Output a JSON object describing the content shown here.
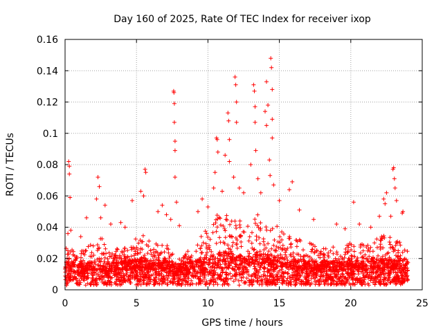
{
  "chart_data": {
    "type": "scatter",
    "title": "Day 160 of 2025, Rate Of TEC Index for receiver ixop",
    "xlabel": "GPS time / hours",
    "ylabel": "ROTI / TECUs",
    "xlim": [
      0,
      25
    ],
    "ylim": [
      0,
      0.16
    ],
    "xticks": [
      0,
      5,
      10,
      15,
      20,
      25
    ],
    "yticks": [
      0,
      0.02,
      0.04,
      0.06,
      0.08,
      0.1,
      0.12,
      0.14,
      0.16
    ],
    "xtick_labels": [
      "0",
      "5",
      "10",
      "15",
      "20",
      "25"
    ],
    "ytick_labels": [
      "0",
      "0.02",
      "0.04",
      "0.06",
      "0.08",
      "0.1",
      "0.12",
      "0.14",
      "0.16"
    ],
    "grid": true,
    "marker": "+",
    "color": "#ff0000",
    "series": [
      {
        "name": "ROTI",
        "points": [
          [
            0.2,
            0.036
          ],
          [
            0.25,
            0.082
          ],
          [
            0.3,
            0.079
          ],
          [
            0.3,
            0.074
          ],
          [
            0.35,
            0.059
          ],
          [
            0.4,
            0.038
          ],
          [
            1.1,
            0.034
          ],
          [
            1.5,
            0.046
          ],
          [
            2.2,
            0.058
          ],
          [
            2.3,
            0.072
          ],
          [
            2.4,
            0.066
          ],
          [
            2.5,
            0.046
          ],
          [
            2.8,
            0.054
          ],
          [
            3.2,
            0.042
          ],
          [
            3.9,
            0.043
          ],
          [
            4.2,
            0.04
          ],
          [
            4.7,
            0.057
          ],
          [
            5.3,
            0.063
          ],
          [
            5.5,
            0.06
          ],
          [
            5.6,
            0.077
          ],
          [
            5.65,
            0.075
          ],
          [
            6.5,
            0.05
          ],
          [
            6.8,
            0.054
          ],
          [
            7.1,
            0.048
          ],
          [
            7.4,
            0.045
          ],
          [
            7.6,
            0.127
          ],
          [
            7.62,
            0.126
          ],
          [
            7.65,
            0.119
          ],
          [
            7.65,
            0.107
          ],
          [
            7.7,
            0.095
          ],
          [
            7.7,
            0.089
          ],
          [
            7.7,
            0.072
          ],
          [
            7.8,
            0.056
          ],
          [
            8.0,
            0.041
          ],
          [
            9.3,
            0.05
          ],
          [
            9.6,
            0.058
          ],
          [
            10.0,
            0.053
          ],
          [
            10.4,
            0.065
          ],
          [
            10.5,
            0.075
          ],
          [
            10.6,
            0.097
          ],
          [
            10.65,
            0.096
          ],
          [
            10.7,
            0.088
          ],
          [
            11.0,
            0.063
          ],
          [
            11.2,
            0.086
          ],
          [
            11.4,
            0.113
          ],
          [
            11.45,
            0.108
          ],
          [
            11.5,
            0.096
          ],
          [
            11.5,
            0.082
          ],
          [
            11.8,
            0.072
          ],
          [
            11.9,
            0.136
          ],
          [
            11.95,
            0.131
          ],
          [
            12.0,
            0.12
          ],
          [
            12.0,
            0.107
          ],
          [
            12.2,
            0.065
          ],
          [
            12.5,
            0.062
          ],
          [
            13.0,
            0.08
          ],
          [
            13.2,
            0.131
          ],
          [
            13.25,
            0.127
          ],
          [
            13.3,
            0.117
          ],
          [
            13.3,
            0.107
          ],
          [
            13.35,
            0.089
          ],
          [
            13.5,
            0.071
          ],
          [
            13.7,
            0.062
          ],
          [
            14.0,
            0.114
          ],
          [
            14.1,
            0.105
          ],
          [
            14.1,
            0.133
          ],
          [
            14.2,
            0.118
          ],
          [
            14.3,
            0.083
          ],
          [
            14.35,
            0.073
          ],
          [
            14.4,
            0.148
          ],
          [
            14.45,
            0.142
          ],
          [
            14.5,
            0.128
          ],
          [
            14.5,
            0.109
          ],
          [
            14.5,
            0.097
          ],
          [
            14.6,
            0.067
          ],
          [
            15.0,
            0.057
          ],
          [
            15.9,
            0.069
          ],
          [
            15.7,
            0.064
          ],
          [
            16.4,
            0.051
          ],
          [
            17.4,
            0.045
          ],
          [
            19.0,
            0.042
          ],
          [
            19.6,
            0.039
          ],
          [
            20.2,
            0.056
          ],
          [
            20.6,
            0.042
          ],
          [
            21.4,
            0.04
          ],
          [
            22.0,
            0.047
          ],
          [
            22.3,
            0.058
          ],
          [
            22.5,
            0.062
          ],
          [
            22.4,
            0.055
          ],
          [
            22.8,
            0.047
          ],
          [
            23.0,
            0.078
          ],
          [
            22.95,
            0.077
          ],
          [
            23.05,
            0.071
          ],
          [
            23.1,
            0.065
          ],
          [
            23.2,
            0.057
          ],
          [
            23.6,
            0.049
          ],
          [
            23.65,
            0.05
          ]
        ],
        "envelope": [
          [
            0.0,
            0.012,
            0.028
          ],
          [
            0.5,
            0.012,
            0.026
          ],
          [
            1.0,
            0.011,
            0.024
          ],
          [
            1.5,
            0.012,
            0.027
          ],
          [
            2.0,
            0.013,
            0.03
          ],
          [
            2.5,
            0.013,
            0.034
          ],
          [
            3.0,
            0.012,
            0.028
          ],
          [
            3.5,
            0.012,
            0.026
          ],
          [
            4.0,
            0.013,
            0.03
          ],
          [
            4.5,
            0.013,
            0.03
          ],
          [
            5.0,
            0.014,
            0.034
          ],
          [
            5.5,
            0.014,
            0.036
          ],
          [
            6.0,
            0.013,
            0.03
          ],
          [
            6.5,
            0.013,
            0.03
          ],
          [
            7.0,
            0.013,
            0.028
          ],
          [
            7.5,
            0.012,
            0.03
          ],
          [
            8.0,
            0.011,
            0.02
          ],
          [
            8.5,
            0.012,
            0.025
          ],
          [
            9.0,
            0.013,
            0.03
          ],
          [
            9.5,
            0.015,
            0.04
          ],
          [
            10.0,
            0.016,
            0.043
          ],
          [
            10.5,
            0.017,
            0.047
          ],
          [
            11.0,
            0.018,
            0.05
          ],
          [
            11.5,
            0.018,
            0.052
          ],
          [
            12.0,
            0.017,
            0.048
          ],
          [
            12.5,
            0.016,
            0.045
          ],
          [
            13.0,
            0.016,
            0.046
          ],
          [
            13.5,
            0.017,
            0.048
          ],
          [
            14.0,
            0.017,
            0.05
          ],
          [
            14.5,
            0.016,
            0.045
          ],
          [
            15.0,
            0.015,
            0.04
          ],
          [
            15.5,
            0.014,
            0.036
          ],
          [
            16.0,
            0.014,
            0.034
          ],
          [
            16.5,
            0.013,
            0.032
          ],
          [
            17.0,
            0.013,
            0.03
          ],
          [
            17.5,
            0.013,
            0.029
          ],
          [
            18.0,
            0.013,
            0.028
          ],
          [
            18.5,
            0.012,
            0.026
          ],
          [
            19.0,
            0.013,
            0.029
          ],
          [
            19.5,
            0.013,
            0.03
          ],
          [
            20.0,
            0.013,
            0.03
          ],
          [
            20.5,
            0.013,
            0.029
          ],
          [
            21.0,
            0.013,
            0.03
          ],
          [
            21.5,
            0.013,
            0.031
          ],
          [
            22.0,
            0.014,
            0.034
          ],
          [
            22.5,
            0.014,
            0.035
          ],
          [
            23.0,
            0.013,
            0.033
          ],
          [
            23.5,
            0.013,
            0.03
          ],
          [
            24.0,
            0.012,
            0.026
          ]
        ]
      }
    ]
  }
}
